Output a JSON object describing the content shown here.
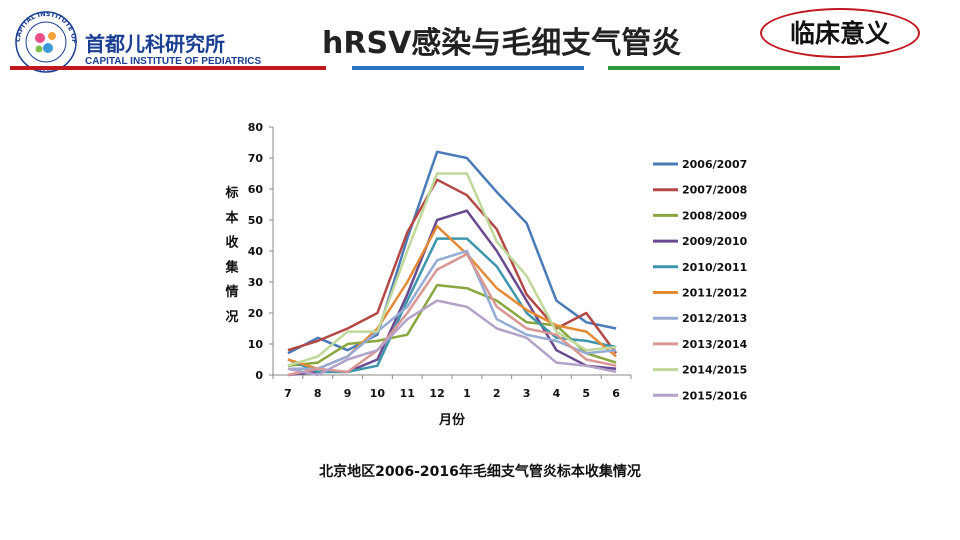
{
  "header": {
    "logo_cn": "首都儿科研究所",
    "logo_en": "CAPITAL INSTITUTE OF PEDIATRICS",
    "logo_ring_text": "CAPITAL INSTITUTE OF PEDIATRICS",
    "logo_year": "1958",
    "logo_tm": "TM",
    "title": "hRSV感染与毛细支气管炎",
    "badge": "临床意义"
  },
  "colors": {
    "brand_blue": "#1b3f93",
    "stripe_red": "#c0181e",
    "stripe_blue": "#2a74c4",
    "stripe_green": "#2e9a3c"
  },
  "caption": "北京地区2006-2016年毛细支气管炎标本收集情况",
  "chart_data": {
    "type": "line",
    "title": "",
    "xlabel": "月份",
    "ylabel": "标本收集情况",
    "categories": [
      "7",
      "8",
      "9",
      "10",
      "11",
      "12",
      "1",
      "2",
      "3",
      "4",
      "5",
      "6"
    ],
    "ylim": [
      0,
      80
    ],
    "yticks": [
      0,
      10,
      20,
      30,
      40,
      50,
      60,
      70,
      80
    ],
    "grid": false,
    "legend": "right",
    "series": [
      {
        "name": "2006/2007",
        "color": "#4a7ab7",
        "values": [
          7,
          12,
          8,
          13,
          44,
          72,
          70,
          59,
          49,
          24,
          17,
          15
        ]
      },
      {
        "name": "2007/2008",
        "color": "#b34845",
        "values": [
          8,
          11,
          15,
          20,
          46,
          63,
          58,
          47,
          26,
          15,
          20,
          7
        ]
      },
      {
        "name": "2008/2009",
        "color": "#8aa73f",
        "values": [
          3,
          4,
          10,
          11,
          13,
          29,
          28,
          24,
          17,
          16,
          7,
          4
        ]
      },
      {
        "name": "2009/2010",
        "color": "#6a4a8f",
        "values": [
          0,
          1,
          1,
          5,
          26,
          50,
          53,
          40,
          24,
          8,
          3,
          2
        ]
      },
      {
        "name": "2010/2011",
        "color": "#3d96ac",
        "values": [
          5,
          1,
          1,
          3,
          24,
          44,
          44,
          35,
          20,
          12,
          11,
          9
        ]
      },
      {
        "name": "2011/2012",
        "color": "#e48a35",
        "values": [
          5,
          2,
          6,
          15,
          30,
          48,
          39,
          28,
          21,
          16,
          14,
          6
        ]
      },
      {
        "name": "2012/2013",
        "color": "#95abd4",
        "values": [
          2,
          2,
          6,
          14,
          22,
          37,
          40,
          18,
          13,
          11,
          7,
          8
        ]
      },
      {
        "name": "2013/2014",
        "color": "#d99693",
        "values": [
          0,
          2,
          1,
          8,
          20,
          34,
          39,
          22,
          15,
          13,
          5,
          3
        ]
      },
      {
        "name": "2014/2015",
        "color": "#bfd89a",
        "values": [
          3,
          6,
          14,
          14,
          40,
          65,
          65,
          43,
          32,
          14,
          8,
          9
        ]
      },
      {
        "name": "2015/2016",
        "color": "#b3a2c7",
        "values": [
          2,
          0,
          5,
          8,
          18,
          24,
          22,
          15,
          12,
          4,
          3,
          1
        ]
      }
    ]
  }
}
